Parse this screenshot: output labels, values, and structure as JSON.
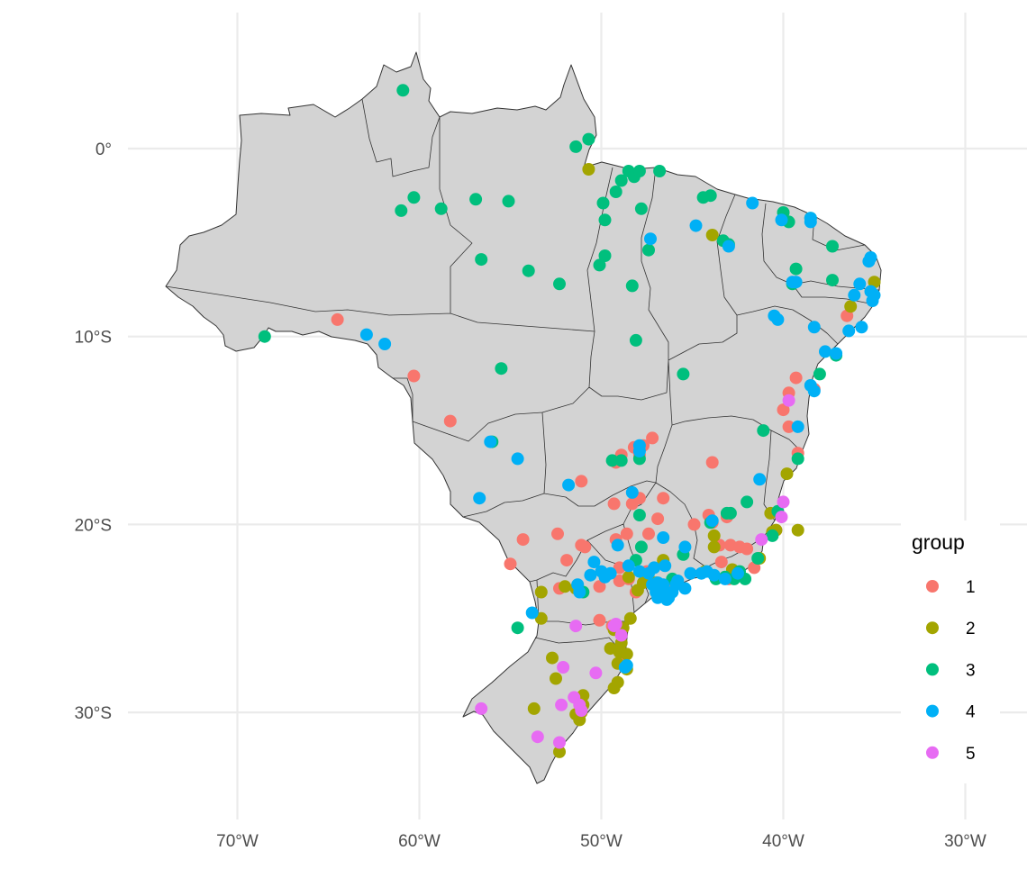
{
  "chart_data": {
    "type": "scatter",
    "subtype": "map-points",
    "region": "Brazil with state borders",
    "title": "",
    "xlabel": "",
    "ylabel": "",
    "x_ticks": [
      {
        "value": -70,
        "label": "70°W"
      },
      {
        "value": -60,
        "label": "60°W"
      },
      {
        "value": -50,
        "label": "50°W"
      },
      {
        "value": -40,
        "label": "40°W"
      },
      {
        "value": -30,
        "label": "30°W"
      }
    ],
    "y_ticks": [
      {
        "value": 0,
        "label": "0°"
      },
      {
        "value": -10,
        "label": "10°S"
      },
      {
        "value": -20,
        "label": "20°S"
      },
      {
        "value": -30,
        "label": "30°S"
      }
    ],
    "xlim": [
      -75.4,
      -26.6
    ],
    "ylim": [
      -35.3,
      7.2
    ],
    "grid": true,
    "legend": {
      "title": "group",
      "placement": "right",
      "entries": [
        {
          "label": "1",
          "color": "#F8766D"
        },
        {
          "label": "2",
          "color": "#A3A500"
        },
        {
          "label": "3",
          "color": "#00BF7D"
        },
        {
          "label": "4",
          "color": "#00B0F6"
        },
        {
          "label": "5",
          "color": "#E76BF3"
        }
      ]
    },
    "series": [
      {
        "name": "1",
        "color": "#F8766D",
        "points": [
          [
            -64.5,
            -9.1
          ],
          [
            -60.3,
            -12.1
          ],
          [
            -58.3,
            -14.5
          ],
          [
            -54.3,
            -20.8
          ],
          [
            -55.0,
            -22.1
          ],
          [
            -52.4,
            -20.5
          ],
          [
            -51.1,
            -17.7
          ],
          [
            -49.2,
            -16.7
          ],
          [
            -48.9,
            -16.3
          ],
          [
            -48.2,
            -15.9
          ],
          [
            -47.7,
            -15.8
          ],
          [
            -47.2,
            -15.4
          ],
          [
            -47.9,
            -16.3
          ],
          [
            -48.3,
            -18.9
          ],
          [
            -47.9,
            -18.6
          ],
          [
            -46.6,
            -18.6
          ],
          [
            -49.3,
            -18.9
          ],
          [
            -49.2,
            -20.8
          ],
          [
            -48.6,
            -20.5
          ],
          [
            -47.4,
            -20.5
          ],
          [
            -46.9,
            -19.7
          ],
          [
            -43.9,
            -16.7
          ],
          [
            -43.9,
            -19.9
          ],
          [
            -43.1,
            -19.6
          ],
          [
            -44.9,
            -20.0
          ],
          [
            -44.1,
            -19.5
          ],
          [
            -43.5,
            -21.1
          ],
          [
            -42.9,
            -21.1
          ],
          [
            -42.4,
            -21.2
          ],
          [
            -42.0,
            -21.3
          ],
          [
            -43.4,
            -22.0
          ],
          [
            -43.0,
            -22.9
          ],
          [
            -41.6,
            -22.3
          ],
          [
            -50.9,
            -21.2
          ],
          [
            -51.1,
            -21.1
          ],
          [
            -51.9,
            -21.9
          ],
          [
            -52.3,
            -23.4
          ],
          [
            -50.1,
            -23.3
          ],
          [
            -49.0,
            -22.3
          ],
          [
            -49.0,
            -23.0
          ],
          [
            -50.1,
            -25.1
          ],
          [
            -49.4,
            -25.4
          ],
          [
            -48.7,
            -26.9
          ],
          [
            -48.5,
            -22.9
          ],
          [
            -48.1,
            -23.6
          ],
          [
            -47.5,
            -22.5
          ],
          [
            -46.8,
            -23.5
          ],
          [
            -46.1,
            -23.3
          ],
          [
            -40.0,
            -13.9
          ],
          [
            -39.7,
            -14.8
          ],
          [
            -39.3,
            -12.2
          ],
          [
            -39.7,
            -13.0
          ],
          [
            -39.2,
            -16.2
          ],
          [
            -36.5,
            -8.9
          ],
          [
            -40.4,
            -20.3
          ],
          [
            -38.3,
            -12.8
          ]
        ]
      },
      {
        "name": "2",
        "color": "#A3A500",
        "points": [
          [
            -50.7,
            -1.1
          ],
          [
            -43.9,
            -4.6
          ],
          [
            -36.3,
            -8.4
          ],
          [
            -35.0,
            -7.1
          ],
          [
            -39.8,
            -17.3
          ],
          [
            -39.2,
            -20.3
          ],
          [
            -40.7,
            -19.4
          ],
          [
            -40.4,
            -20.3
          ],
          [
            -43.8,
            -20.6
          ],
          [
            -43.8,
            -21.2
          ],
          [
            -41.3,
            -21.8
          ],
          [
            -40.6,
            -20.4
          ],
          [
            -44.3,
            -22.5
          ],
          [
            -42.8,
            -22.4
          ],
          [
            -46.6,
            -21.9
          ],
          [
            -47.0,
            -23.1
          ],
          [
            -47.4,
            -22.9
          ],
          [
            -46.8,
            -23.7
          ],
          [
            -46.3,
            -23.8
          ],
          [
            -48.0,
            -23.5
          ],
          [
            -47.7,
            -23.1
          ],
          [
            -48.5,
            -22.8
          ],
          [
            -48.4,
            -25.0
          ],
          [
            -48.8,
            -25.5
          ],
          [
            -49.3,
            -25.6
          ],
          [
            -49.2,
            -25.4
          ],
          [
            -48.9,
            -26.3
          ],
          [
            -49.0,
            -26.8
          ],
          [
            -48.6,
            -26.9
          ],
          [
            -49.5,
            -26.6
          ],
          [
            -49.1,
            -27.4
          ],
          [
            -48.6,
            -27.7
          ],
          [
            -49.3,
            -28.7
          ],
          [
            -49.1,
            -28.4
          ],
          [
            -52.7,
            -27.1
          ],
          [
            -52.5,
            -28.2
          ],
          [
            -51.4,
            -30.1
          ],
          [
            -51.0,
            -29.6
          ],
          [
            -51.0,
            -29.1
          ],
          [
            -51.1,
            -30.0
          ],
          [
            -51.2,
            -30.4
          ],
          [
            -52.3,
            -32.1
          ],
          [
            -53.7,
            -29.8
          ],
          [
            -53.3,
            -23.6
          ],
          [
            -53.3,
            -25.0
          ],
          [
            -52.0,
            -23.3
          ],
          [
            -51.4,
            -23.4
          ]
        ]
      },
      {
        "name": "3",
        "color": "#00BF7D",
        "points": [
          [
            -60.9,
            3.1
          ],
          [
            -68.5,
            -10.0
          ],
          [
            -61.0,
            -3.3
          ],
          [
            -60.3,
            -2.6
          ],
          [
            -58.8,
            -3.2
          ],
          [
            -56.9,
            -2.7
          ],
          [
            -55.1,
            -2.8
          ],
          [
            -56.6,
            -5.9
          ],
          [
            -54.0,
            -6.5
          ],
          [
            -52.3,
            -7.2
          ],
          [
            -50.1,
            -6.2
          ],
          [
            -49.8,
            -5.7
          ],
          [
            -49.8,
            -3.8
          ],
          [
            -49.2,
            -2.3
          ],
          [
            -48.9,
            -1.7
          ],
          [
            -48.5,
            -1.2
          ],
          [
            -48.2,
            -1.5
          ],
          [
            -47.9,
            -1.2
          ],
          [
            -47.8,
            -3.2
          ],
          [
            -46.8,
            -1.2
          ],
          [
            -49.9,
            -2.9
          ],
          [
            -51.4,
            0.1
          ],
          [
            -50.7,
            0.5
          ],
          [
            -44.4,
            -2.6
          ],
          [
            -44.0,
            -2.5
          ],
          [
            -43.3,
            -4.9
          ],
          [
            -43.0,
            -5.1
          ],
          [
            -47.4,
            -5.4
          ],
          [
            -48.3,
            -7.3
          ],
          [
            -48.1,
            -10.2
          ],
          [
            -45.5,
            -12.0
          ],
          [
            -55.5,
            -11.7
          ],
          [
            -56.0,
            -15.6
          ],
          [
            -49.4,
            -16.6
          ],
          [
            -48.9,
            -16.6
          ],
          [
            -47.9,
            -16.5
          ],
          [
            -47.9,
            -19.5
          ],
          [
            -47.8,
            -21.2
          ],
          [
            -48.1,
            -21.9
          ],
          [
            -46.1,
            -22.9
          ],
          [
            -45.5,
            -21.6
          ],
          [
            -42.0,
            -18.8
          ],
          [
            -42.9,
            -19.4
          ],
          [
            -43.1,
            -19.4
          ],
          [
            -44.0,
            -19.9
          ],
          [
            -43.2,
            -22.8
          ],
          [
            -42.4,
            -22.5
          ],
          [
            -42.1,
            -22.9
          ],
          [
            -43.7,
            -22.9
          ],
          [
            -42.7,
            -22.9
          ],
          [
            -40.3,
            -19.3
          ],
          [
            -40.6,
            -20.6
          ],
          [
            -41.1,
            -15.0
          ],
          [
            -41.4,
            -21.8
          ],
          [
            -39.2,
            -16.5
          ],
          [
            -38.0,
            -12.0
          ],
          [
            -37.1,
            -11.0
          ],
          [
            -37.3,
            -7.0
          ],
          [
            -39.3,
            -6.4
          ],
          [
            -39.5,
            -7.2
          ],
          [
            -37.3,
            -5.2
          ],
          [
            -38.5,
            -3.7
          ],
          [
            -40.0,
            -3.4
          ],
          [
            -39.7,
            -3.9
          ],
          [
            -51.0,
            -23.6
          ],
          [
            -54.6,
            -25.5
          ]
        ]
      },
      {
        "name": "4",
        "color": "#00B0F6",
        "points": [
          [
            -62.9,
            -9.9
          ],
          [
            -61.9,
            -10.4
          ],
          [
            -56.1,
            -15.6
          ],
          [
            -54.6,
            -16.5
          ],
          [
            -56.7,
            -18.6
          ],
          [
            -51.8,
            -17.9
          ],
          [
            -48.3,
            -18.3
          ],
          [
            -47.9,
            -16.1
          ],
          [
            -47.9,
            -15.8
          ],
          [
            -47.3,
            -4.8
          ],
          [
            -44.8,
            -4.1
          ],
          [
            -43.0,
            -5.2
          ],
          [
            -41.7,
            -2.9
          ],
          [
            -40.1,
            -3.8
          ],
          [
            -38.5,
            -3.9
          ],
          [
            -38.5,
            -3.7
          ],
          [
            -35.2,
            -5.8
          ],
          [
            -35.3,
            -6.0
          ],
          [
            -35.8,
            -7.2
          ],
          [
            -35.0,
            -7.8
          ],
          [
            -35.2,
            -7.6
          ],
          [
            -35.1,
            -8.1
          ],
          [
            -36.1,
            -7.8
          ],
          [
            -36.4,
            -9.7
          ],
          [
            -35.7,
            -9.5
          ],
          [
            -38.3,
            -9.5
          ],
          [
            -39.5,
            -7.1
          ],
          [
            -39.3,
            -7.1
          ],
          [
            -40.3,
            -9.1
          ],
          [
            -40.5,
            -8.9
          ],
          [
            -37.7,
            -10.8
          ],
          [
            -37.1,
            -10.9
          ],
          [
            -38.5,
            -12.6
          ],
          [
            -38.3,
            -12.9
          ],
          [
            -39.2,
            -14.8
          ],
          [
            -41.3,
            -17.6
          ],
          [
            -43.9,
            -19.8
          ],
          [
            -45.4,
            -21.2
          ],
          [
            -46.6,
            -20.7
          ],
          [
            -46.5,
            -22.2
          ],
          [
            -47.1,
            -22.3
          ],
          [
            -47.4,
            -22.6
          ],
          [
            -47.9,
            -22.5
          ],
          [
            -48.5,
            -22.2
          ],
          [
            -49.1,
            -21.1
          ],
          [
            -49.5,
            -22.6
          ],
          [
            -50.0,
            -22.5
          ],
          [
            -50.4,
            -22.0
          ],
          [
            -50.6,
            -22.7
          ],
          [
            -51.3,
            -23.2
          ],
          [
            -51.2,
            -23.6
          ],
          [
            -49.8,
            -22.8
          ],
          [
            -46.9,
            -23.1
          ],
          [
            -46.7,
            -23.5
          ],
          [
            -46.6,
            -23.7
          ],
          [
            -46.4,
            -24.0
          ],
          [
            -46.1,
            -23.6
          ],
          [
            -45.9,
            -23.2
          ],
          [
            -45.4,
            -23.4
          ],
          [
            -45.1,
            -22.6
          ],
          [
            -44.2,
            -22.5
          ],
          [
            -43.8,
            -22.7
          ],
          [
            -43.2,
            -22.9
          ],
          [
            -42.5,
            -22.6
          ],
          [
            -46.9,
            -23.9
          ],
          [
            -46.6,
            -23.2
          ],
          [
            -47.2,
            -23.2
          ],
          [
            -45.8,
            -23.0
          ],
          [
            -44.5,
            -22.6
          ],
          [
            -47.0,
            -23.6
          ],
          [
            -46.3,
            -23.9
          ],
          [
            -48.7,
            -27.6
          ],
          [
            -48.6,
            -27.5
          ],
          [
            -53.8,
            -24.7
          ]
        ]
      },
      {
        "name": "5",
        "color": "#E76BF3",
        "points": [
          [
            -39.7,
            -13.4
          ],
          [
            -40.0,
            -18.8
          ],
          [
            -40.1,
            -19.6
          ],
          [
            -41.2,
            -20.8
          ],
          [
            -49.2,
            -25.3
          ],
          [
            -49.3,
            -25.4
          ],
          [
            -48.9,
            -25.9
          ],
          [
            -51.4,
            -25.4
          ],
          [
            -50.3,
            -27.9
          ],
          [
            -52.1,
            -27.6
          ],
          [
            -51.5,
            -29.2
          ],
          [
            -51.2,
            -29.6
          ],
          [
            -51.1,
            -29.9
          ],
          [
            -52.2,
            -29.6
          ],
          [
            -52.3,
            -31.6
          ],
          [
            -53.5,
            -31.3
          ],
          [
            -56.6,
            -29.8
          ]
        ]
      }
    ]
  }
}
